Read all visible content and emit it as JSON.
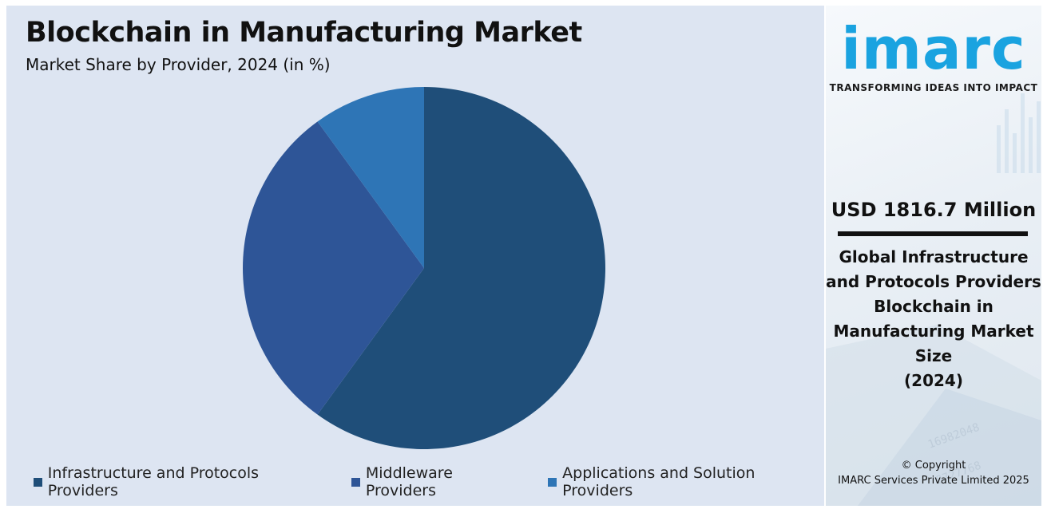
{
  "chart_data": {
    "type": "pie",
    "title": "Blockchain in Manufacturing Market",
    "subtitle": "Market Share by Provider, 2024 (in %)",
    "categories": [
      "Infrastructure and Protocols Providers",
      "Middleware Providers",
      "Applications and Solution Providers"
    ],
    "values": [
      60,
      30,
      10
    ],
    "colors": [
      "#1f4e79",
      "#2e5597",
      "#2e75b6"
    ],
    "legend_position": "bottom"
  },
  "sidebar": {
    "logo": "imarc",
    "tagline": "TRANSFORMING IDEAS INTO IMPACT",
    "market_value": "USD 1816.7 Million",
    "description_lines": [
      "Global Infrastructure",
      "and Protocols Providers",
      "Blockchain in",
      "Manufacturing Market",
      "Size",
      "(2024)"
    ],
    "copyright_lines": [
      "© Copyright",
      "IMARC Services Private Limited 2025"
    ],
    "accent_color": "#1aa3e0"
  }
}
